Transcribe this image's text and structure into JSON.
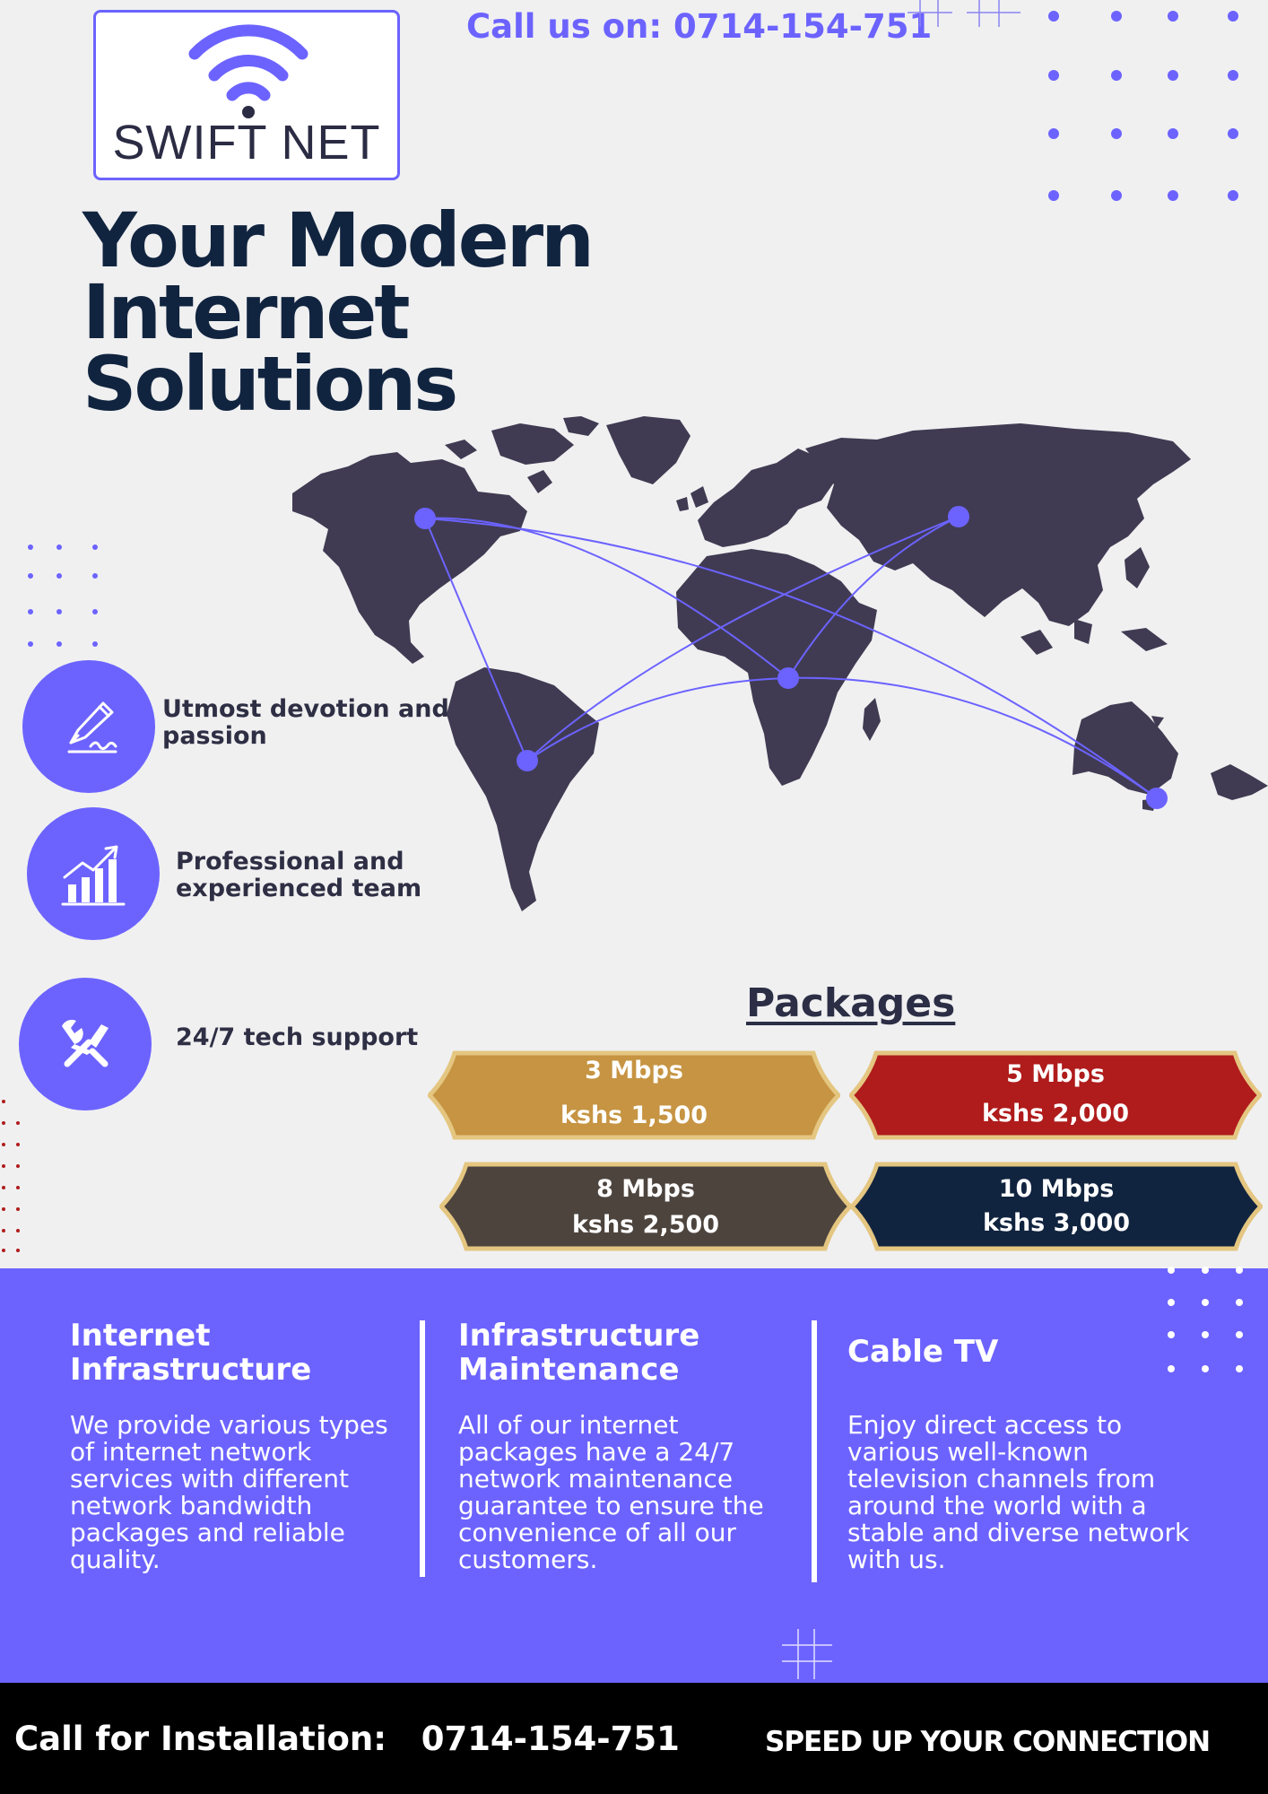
{
  "brand": {
    "name": "SWIFT NET",
    "logo_icon": "wifi-icon",
    "accent": "#6c63ff",
    "dark": "#11243f"
  },
  "header": {
    "call_text": "Call us on:  0714-154-751"
  },
  "headline": {
    "line1": "Your Modern",
    "line2": "Internet",
    "line3": "Solutions"
  },
  "features": [
    {
      "icon": "pen-signature-icon",
      "line1": "Utmost devotion and",
      "line2": "passion"
    },
    {
      "icon": "growth-chart-icon",
      "line1": "Professional and",
      "line2": "experienced team"
    },
    {
      "icon": "tools-icon",
      "line1": "24/7 tech support",
      "line2": ""
    }
  ],
  "packages": {
    "title": "Packages",
    "items": [
      {
        "speed": "3 Mbps",
        "price": "kshs 1,500",
        "color": "#c69442"
      },
      {
        "speed": "5 Mbps",
        "price": "kshs 2,000",
        "color": "#b01b1b"
      },
      {
        "speed": "8 Mbps",
        "price": "kshs 2,500",
        "color": "#4d443e"
      },
      {
        "speed": "10 Mbps",
        "price": "kshs 3,000",
        "color": "#11243f"
      }
    ]
  },
  "services": [
    {
      "title1": "Internet",
      "title2": "Infrastructure",
      "lines": [
        "We provide various types",
        "of internet network",
        "services with different",
        "network bandwidth",
        "packages and reliable",
        "quality."
      ]
    },
    {
      "title1": "Infrastructure",
      "title2": "Maintenance",
      "lines": [
        "All of our internet",
        "packages have a 24/7",
        "network maintenance",
        "guarantee to ensure the",
        "convenience of all our",
        "customers."
      ]
    },
    {
      "title1": "Cable TV",
      "title2": "",
      "lines": [
        "Enjoy direct access to",
        "various well-known",
        "television channels from",
        "around the world with a",
        "stable and diverse network",
        "with us."
      ]
    }
  ],
  "footer": {
    "call_text": "Call for Installation:   0714-154-751",
    "slogan": "SPEED UP YOUR CONNECTION"
  }
}
